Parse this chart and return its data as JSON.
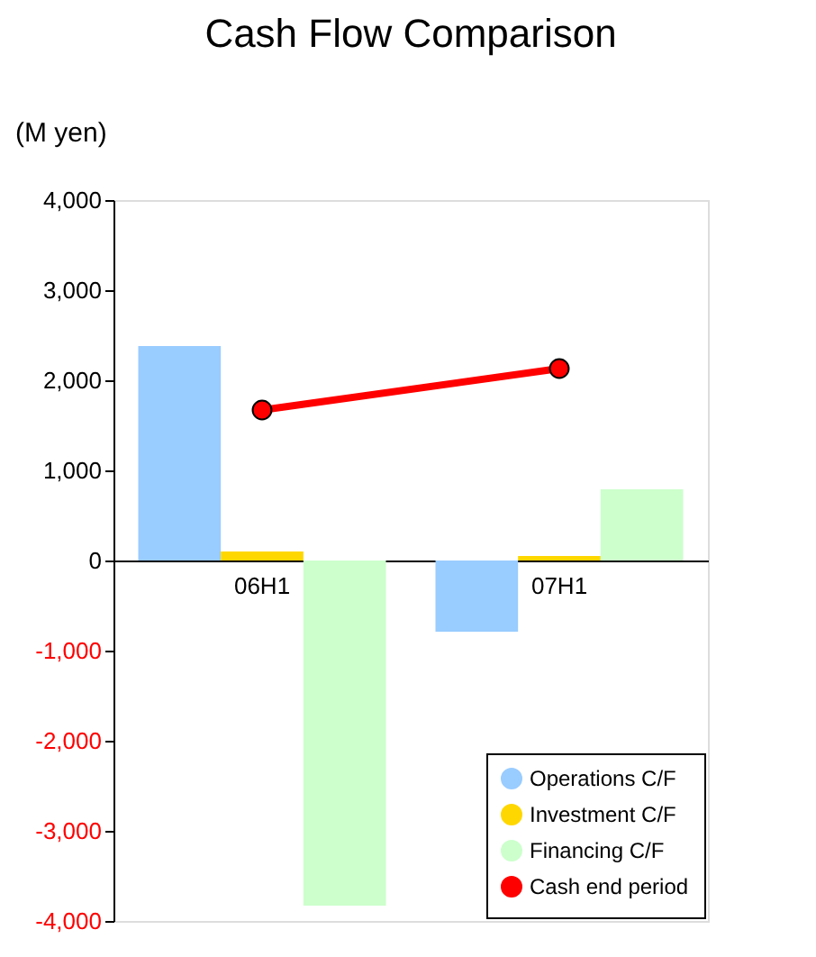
{
  "chart_data": {
    "type": "bar",
    "title": "Cash Flow Comparison",
    "ylabel": "(M yen)",
    "categories": [
      "06H1",
      "07H1"
    ],
    "series": [
      {
        "name": "Operations C/F",
        "color": "#99ccff",
        "values": [
          2380,
          -790
        ]
      },
      {
        "name": "Investment C/F",
        "color": "#ffd700",
        "values": [
          100,
          50
        ]
      },
      {
        "name": "Financing C/F",
        "color": "#ccffcc",
        "values": [
          -3830,
          790
        ]
      },
      {
        "name": "Cash end period",
        "type": "line",
        "color": "#ff0000",
        "marker": "circle",
        "values": [
          1670,
          2130
        ]
      }
    ],
    "ylim": [
      -4000,
      4000
    ],
    "yticks": [
      {
        "value": -4000,
        "label": "-4,000"
      },
      {
        "value": -3000,
        "label": "-3,000"
      },
      {
        "value": -2000,
        "label": "-2,000"
      },
      {
        "value": -1000,
        "label": "-1,000"
      },
      0,
      {
        "value": 1000,
        "label": "1,000"
      },
      {
        "value": 2000,
        "label": "2,000"
      },
      {
        "value": 3000,
        "label": "3,000"
      },
      {
        "value": 4000,
        "label": "4,000"
      }
    ],
    "grid": false,
    "legend": "bottom right"
  }
}
